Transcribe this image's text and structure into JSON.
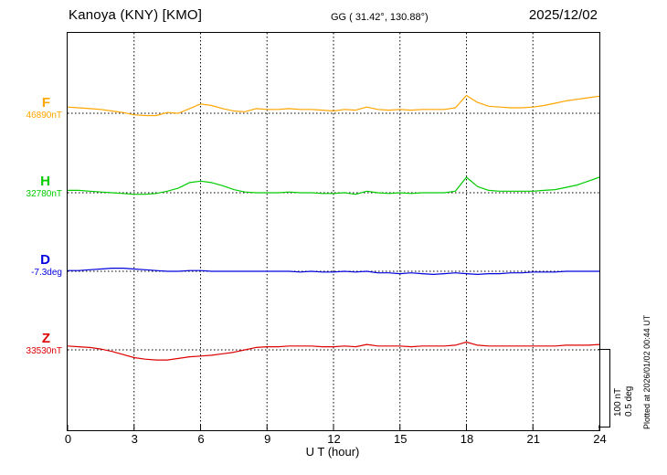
{
  "header": {
    "station": "Kanoya (KNY)  [KMO]",
    "coords": "GG ( 31.42°, 130.88°)",
    "date": "2025/12/02"
  },
  "axis": {
    "xlabel": "U T (hour)",
    "ticks": [
      0,
      3,
      6,
      9,
      12,
      15,
      18,
      21,
      24
    ],
    "xlim": [
      0,
      24
    ]
  },
  "scale_bar": {
    "line1": "100 nT",
    "line2": "0.5 deg"
  },
  "footer": {
    "plotted_note": "Plotted at 2026/01/02 00:44 UT"
  },
  "chart_data": {
    "type": "line",
    "title": "Kanoya (KNY) [KMO] magnetogram, 2025/12/02",
    "xlabel": "U T (hour)",
    "x_range": [
      0,
      24
    ],
    "grid": "vertical dotted every 3 h, dotted baseline per component",
    "legend_position": "left baseline labels",
    "scale": {
      "nT_per_division": 100,
      "deg_per_division": 0.5
    },
    "x": [
      0,
      0.5,
      1,
      1.5,
      2,
      2.5,
      3,
      3.5,
      4,
      4.5,
      5,
      5.5,
      6,
      6.5,
      7,
      7.5,
      8,
      8.5,
      9,
      9.5,
      10,
      10.5,
      11,
      11.5,
      12,
      12.5,
      13,
      13.5,
      14,
      14.5,
      15,
      15.5,
      16,
      16.5,
      17,
      17.5,
      18,
      18.5,
      19,
      19.5,
      20,
      20.5,
      21,
      21.5,
      22,
      22.5,
      23,
      23.5,
      24
    ],
    "series": [
      {
        "name": "F",
        "unit": "nT",
        "color": "#ffa500",
        "baseline_label": "46890nT",
        "baseline_value": 46890,
        "values": [
          46898,
          46897,
          46896,
          46895,
          46893,
          46891,
          46888,
          46887,
          46887,
          46891,
          46890,
          46896,
          46902,
          46900,
          46896,
          46893,
          46892,
          46896,
          46895,
          46895,
          46896,
          46895,
          46895,
          46894,
          46893,
          46895,
          46894,
          46898,
          46895,
          46894,
          46895,
          46894,
          46895,
          46895,
          46895,
          46897,
          46913,
          46904,
          46899,
          46898,
          46897,
          46897,
          46898,
          46900,
          46903,
          46906,
          46908,
          46910,
          46912
        ]
      },
      {
        "name": "H",
        "unit": "nT",
        "color": "#00cc00",
        "baseline_label": "32780nT",
        "baseline_value": 32780,
        "values": [
          32783,
          32783,
          32782,
          32781,
          32780,
          32779,
          32778,
          32778,
          32779,
          32782,
          32786,
          32793,
          32795,
          32793,
          32789,
          32784,
          32781,
          32780,
          32780,
          32780,
          32781,
          32780,
          32780,
          32779,
          32779,
          32780,
          32778,
          32782,
          32780,
          32779,
          32780,
          32779,
          32780,
          32780,
          32780,
          32782,
          32800,
          32788,
          32783,
          32782,
          32782,
          32782,
          32782,
          32783,
          32784,
          32787,
          32790,
          32795,
          32800
        ]
      },
      {
        "name": "D",
        "unit": "deg",
        "color": "#0000dd",
        "baseline_label": "-7.3deg",
        "baseline_value": -7.3,
        "values": [
          -7.295,
          -7.295,
          -7.29,
          -7.285,
          -7.28,
          -7.28,
          -7.285,
          -7.29,
          -7.295,
          -7.3,
          -7.3,
          -7.295,
          -7.295,
          -7.3,
          -7.3,
          -7.3,
          -7.3,
          -7.3,
          -7.3,
          -7.3,
          -7.3,
          -7.305,
          -7.3,
          -7.305,
          -7.305,
          -7.3,
          -7.305,
          -7.3,
          -7.31,
          -7.31,
          -7.315,
          -7.31,
          -7.315,
          -7.32,
          -7.315,
          -7.31,
          -7.315,
          -7.32,
          -7.315,
          -7.315,
          -7.31,
          -7.31,
          -7.305,
          -7.305,
          -7.305,
          -7.3,
          -7.3,
          -7.3,
          -7.3
        ]
      },
      {
        "name": "Z",
        "unit": "nT",
        "color": "#dd0000",
        "baseline_label": "33530nT",
        "baseline_value": 33530,
        "values": [
          33535,
          33534,
          33533,
          33531,
          33528,
          33524,
          33520,
          33518,
          33517,
          33517,
          33519,
          33521,
          33522,
          33523,
          33525,
          33527,
          33530,
          33533,
          33534,
          33534,
          33535,
          33535,
          33535,
          33534,
          33534,
          33535,
          33534,
          33537,
          33535,
          33535,
          33535,
          33534,
          33535,
          33535,
          33535,
          33536,
          33540,
          33536,
          33535,
          33535,
          33535,
          33535,
          33535,
          33535,
          33535,
          33536,
          33536,
          33536,
          33537
        ]
      }
    ]
  }
}
